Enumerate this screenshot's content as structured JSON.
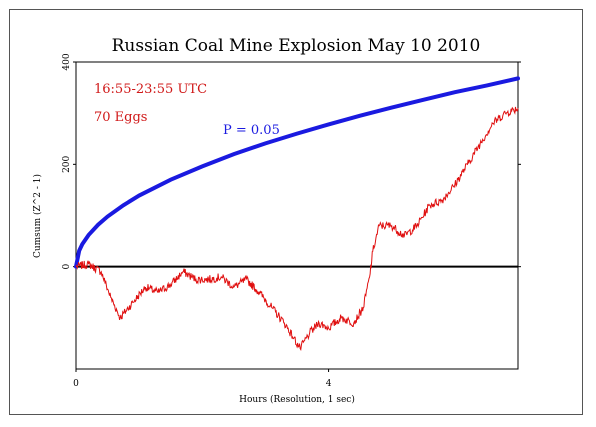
{
  "chart_data": {
    "type": "line",
    "title": "Russian Coal Mine Explosion May 10 2010",
    "xlabel": "Hours (Resolution, 1 sec)",
    "ylabel": "Cumsum (Z^2 - 1)",
    "xlim": [
      0,
      7.0
    ],
    "ylim": [
      -200,
      400
    ],
    "x_ticks": [
      {
        "value": 0,
        "label": "0"
      },
      {
        "value": 4,
        "label": "4"
      }
    ],
    "y_ticks": [
      {
        "value": 0,
        "label": "0"
      },
      {
        "value": 200,
        "label": "200"
      },
      {
        "value": 400,
        "label": "400"
      }
    ],
    "annotations": {
      "time_range": "16:55-23:55 UTC",
      "eggs": "70 Eggs",
      "p_label": "P = 0.05"
    },
    "colors": {
      "cumsum": "#e01010",
      "probability": "#1a1ae0",
      "zero_line": "#000000",
      "annotation_red": "#d01818",
      "annotation_blue": "#1a1ae0"
    },
    "series": [
      {
        "kind": "cumsum",
        "x": [
          0,
          0.2,
          0.4,
          0.55,
          0.7,
          0.9,
          1.1,
          1.3,
          1.5,
          1.7,
          1.9,
          2.1,
          2.3,
          2.5,
          2.7,
          2.9,
          3.1,
          3.3,
          3.45,
          3.55,
          3.7,
          3.85,
          4.0,
          4.2,
          4.4,
          4.55,
          4.65,
          4.7,
          4.8,
          5.0,
          5.2,
          5.4,
          5.6,
          5.8,
          6.0,
          6.2,
          6.4,
          6.6,
          6.8,
          7.0
        ],
        "y": [
          0,
          5,
          -10,
          -60,
          -100,
          -70,
          -40,
          -50,
          -35,
          -10,
          -25,
          -25,
          -20,
          -40,
          -25,
          -50,
          -80,
          -110,
          -140,
          -160,
          -130,
          -110,
          -120,
          -100,
          -110,
          -80,
          -20,
          30,
          80,
          80,
          60,
          80,
          120,
          130,
          160,
          200,
          240,
          280,
          300,
          310
        ]
      },
      {
        "kind": "probability_envelope",
        "name": "P = 0.05",
        "x": [
          0,
          0.05,
          0.1,
          0.2,
          0.35,
          0.5,
          0.75,
          1.0,
          1.5,
          2.0,
          2.5,
          3.0,
          3.5,
          4.0,
          4.5,
          5.0,
          5.5,
          6.0,
          6.5,
          7.0
        ],
        "y": [
          0,
          31,
          44,
          62,
          82,
          98,
          120,
          139,
          170,
          196,
          220,
          241,
          260,
          278,
          295,
          311,
          326,
          341,
          354,
          368
        ]
      }
    ],
    "grid": false,
    "legend": "none"
  }
}
